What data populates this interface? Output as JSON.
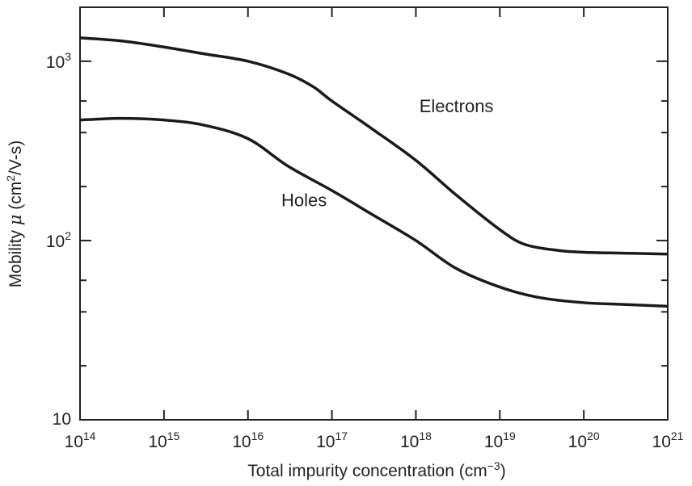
{
  "chart_data": {
    "type": "line",
    "x_scale": "log",
    "y_scale": "log",
    "xlabel": {
      "pre": "Total impurity concentration (cm",
      "sup": "−3",
      "post": ")"
    },
    "ylabel": {
      "pre": "Mobility ",
      "greek": "μ",
      "mid": " (cm",
      "sup": "2",
      "post": "/V-s)"
    },
    "xlim": [
      100000000000000.0,
      1e+21
    ],
    "ylim": [
      10,
      2000
    ],
    "x_ticks": [
      {
        "value": 100000000000000.0,
        "base": "10",
        "exp": "14"
      },
      {
        "value": 1000000000000000.0,
        "base": "10",
        "exp": "15"
      },
      {
        "value": 1e+16,
        "base": "10",
        "exp": "16"
      },
      {
        "value": 1e+17,
        "base": "10",
        "exp": "17"
      },
      {
        "value": 1e+18,
        "base": "10",
        "exp": "18"
      },
      {
        "value": 1e+19,
        "base": "10",
        "exp": "19"
      },
      {
        "value": 1e+20,
        "base": "10",
        "exp": "20"
      },
      {
        "value": 1e+21,
        "base": "10",
        "exp": "21"
      }
    ],
    "y_major_ticks": [
      {
        "value": 10,
        "base": "10",
        "exp": ""
      },
      {
        "value": 100,
        "base": "10",
        "exp": "2"
      },
      {
        "value": 1000,
        "base": "10",
        "exp": "3"
      }
    ],
    "y_minor_ticks": [
      20,
      40,
      60,
      200,
      400,
      600
    ],
    "grid": false,
    "series": [
      {
        "name": "Electrons",
        "x": [
          100000000000000.0,
          300000000000000.0,
          1000000000000000.0,
          3000000000000000.0,
          1e+16,
          3e+16,
          6e+16,
          1e+17,
          3e+17,
          1e+18,
          3e+18,
          1e+19,
          2e+19,
          5e+19,
          1e+20,
          3e+20,
          1e+21
        ],
        "y": [
          1350,
          1300,
          1200,
          1100,
          1000,
          850,
          720,
          600,
          420,
          280,
          180,
          115,
          95,
          88,
          86,
          85,
          84
        ]
      },
      {
        "name": "Holes",
        "x": [
          100000000000000.0,
          300000000000000.0,
          1000000000000000.0,
          3000000000000000.0,
          1e+16,
          3e+16,
          1e+17,
          3e+17,
          1e+18,
          3e+18,
          1e+19,
          3e+19,
          1e+20,
          3e+20,
          1e+21
        ],
        "y": [
          470,
          480,
          470,
          440,
          370,
          260,
          190,
          140,
          100,
          70,
          55,
          48,
          45,
          44,
          43
        ]
      }
    ]
  }
}
